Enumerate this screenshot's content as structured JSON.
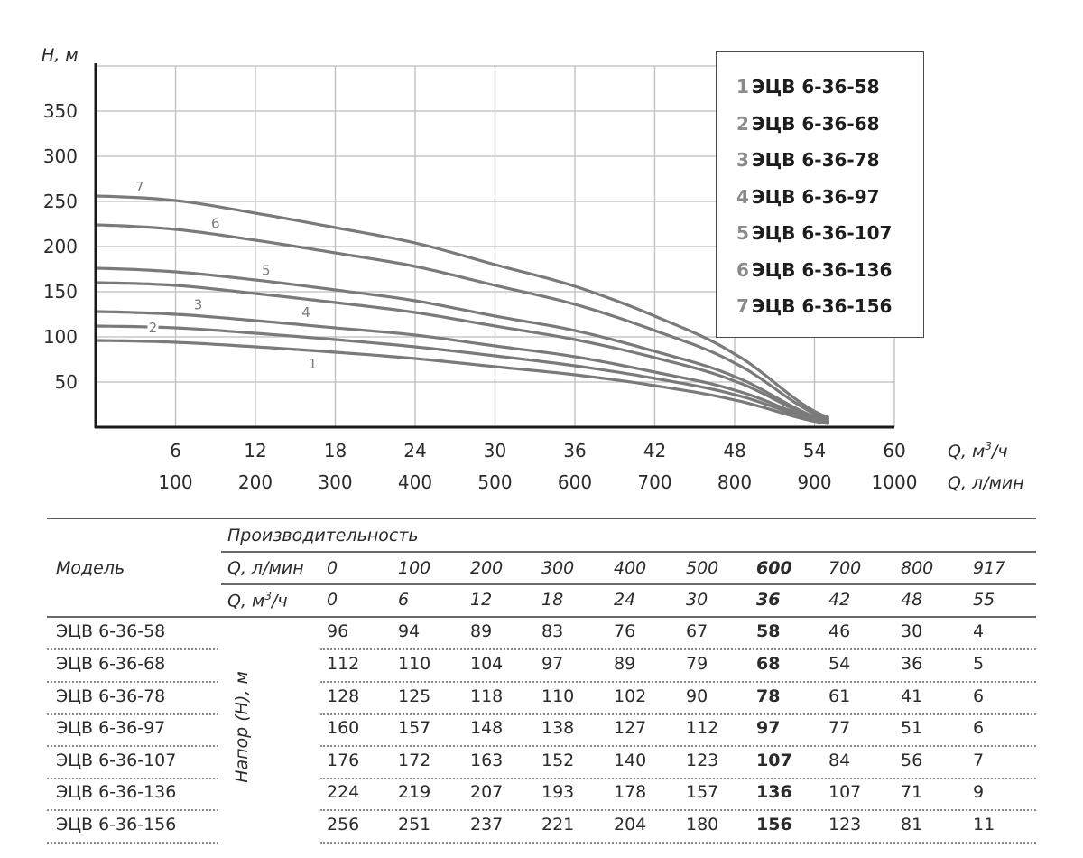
{
  "chart_data": {
    "type": "line",
    "title": "",
    "ylabel": "H, м",
    "xlabel_primary": "Q, м³/ч",
    "xlabel_secondary": "Q, л/мин",
    "ylim": [
      0,
      400
    ],
    "xlim": [
      0,
      60
    ],
    "grid": true,
    "y_ticks": [
      50,
      100,
      150,
      200,
      250,
      300,
      350
    ],
    "x_ticks": [
      6,
      12,
      18,
      24,
      30,
      36,
      42,
      48,
      54,
      60
    ],
    "x_ticks_secondary": [
      100,
      200,
      300,
      400,
      500,
      600,
      700,
      800,
      900,
      1000
    ],
    "x": [
      0,
      6,
      12,
      18,
      24,
      30,
      36,
      42,
      48,
      55
    ],
    "series": [
      {
        "id": "1",
        "name": "ЭЦВ 6-36-58",
        "values": [
          96,
          94,
          89,
          83,
          76,
          67,
          58,
          46,
          30,
          4
        ]
      },
      {
        "id": "2",
        "name": "ЭЦВ 6-36-68",
        "values": [
          112,
          110,
          104,
          97,
          89,
          79,
          68,
          54,
          36,
          5
        ]
      },
      {
        "id": "3",
        "name": "ЭЦВ 6-36-78",
        "values": [
          128,
          125,
          118,
          110,
          102,
          90,
          78,
          61,
          41,
          6
        ]
      },
      {
        "id": "4",
        "name": "ЭЦВ 6-36-97",
        "values": [
          160,
          157,
          148,
          138,
          127,
          112,
          97,
          77,
          51,
          6
        ]
      },
      {
        "id": "5",
        "name": "ЭЦВ 6-36-107",
        "values": [
          176,
          172,
          163,
          152,
          140,
          123,
          107,
          84,
          56,
          7
        ]
      },
      {
        "id": "6",
        "name": "ЭЦВ 6-36-136",
        "values": [
          224,
          219,
          207,
          193,
          178,
          157,
          136,
          107,
          71,
          9
        ]
      },
      {
        "id": "7",
        "name": "ЭЦВ 6-36-156",
        "values": [
          256,
          251,
          237,
          221,
          204,
          180,
          156,
          123,
          81,
          11
        ]
      }
    ],
    "curve_label_positions_q": {
      "1": 16.3,
      "2": 4.3,
      "3": 7.7,
      "4": 15.8,
      "5": 12.8,
      "6": 9.0,
      "7": 3.3
    },
    "line_color": "#7a7a7a",
    "legend_placement": "top-right"
  },
  "table": {
    "model_header": "Модель",
    "perf_header": "Производительность",
    "q_lmin_label": "Q, л/мин",
    "q_m3h_label_main": "Q, м",
    "q_m3h_label_sup": "3",
    "q_m3h_label_tail": "/ч",
    "head_label": "Напор (Н), м",
    "q_lmin": [
      "0",
      "100",
      "200",
      "300",
      "400",
      "500",
      "600",
      "700",
      "800",
      "917"
    ],
    "q_m3h": [
      "0",
      "6",
      "12",
      "18",
      "24",
      "30",
      "36",
      "42",
      "48",
      "55"
    ],
    "bold_column_index": 6,
    "rows": [
      {
        "model": "ЭЦВ 6-36-58",
        "values": [
          "96",
          "94",
          "89",
          "83",
          "76",
          "67",
          "58",
          "46",
          "30",
          "4"
        ]
      },
      {
        "model": "ЭЦВ 6-36-68",
        "values": [
          "112",
          "110",
          "104",
          "97",
          "89",
          "79",
          "68",
          "54",
          "36",
          "5"
        ]
      },
      {
        "model": "ЭЦВ 6-36-78",
        "values": [
          "128",
          "125",
          "118",
          "110",
          "102",
          "90",
          "78",
          "61",
          "41",
          "6"
        ]
      },
      {
        "model": "ЭЦВ 6-36-97",
        "values": [
          "160",
          "157",
          "148",
          "138",
          "127",
          "112",
          "97",
          "77",
          "51",
          "6"
        ]
      },
      {
        "model": "ЭЦВ 6-36-107",
        "values": [
          "176",
          "172",
          "163",
          "152",
          "140",
          "123",
          "107",
          "84",
          "56",
          "7"
        ]
      },
      {
        "model": "ЭЦВ 6-36-136",
        "values": [
          "224",
          "219",
          "207",
          "193",
          "178",
          "157",
          "136",
          "107",
          "71",
          "9"
        ]
      },
      {
        "model": "ЭЦВ 6-36-156",
        "values": [
          "256",
          "251",
          "237",
          "221",
          "204",
          "180",
          "156",
          "123",
          "81",
          "11"
        ]
      }
    ]
  }
}
